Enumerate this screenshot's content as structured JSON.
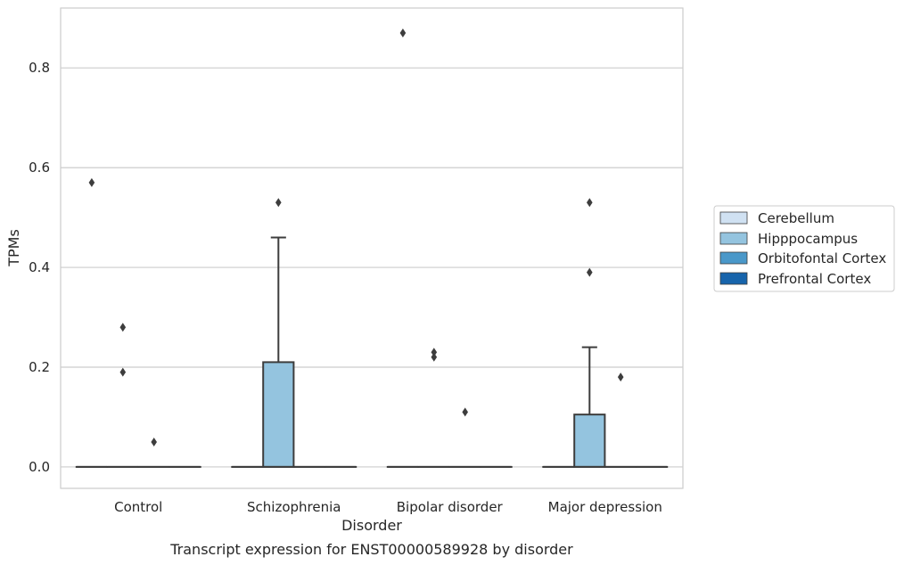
{
  "chart_data": {
    "type": "boxplot",
    "title": "Transcript expression for ENST00000589928 by disorder",
    "xlabel": "Disorder",
    "ylabel": "TPMs",
    "ylim": [
      -0.043,
      0.92
    ],
    "yticks": [
      0.0,
      0.2,
      0.4,
      0.6,
      0.8
    ],
    "ytick_labels": [
      "0.0",
      "0.2",
      "0.4",
      "0.6",
      "0.8"
    ],
    "grid": "horizontal",
    "legend_position": "right",
    "categories": [
      "Control",
      "Schizophrenia",
      "Bipolar disorder",
      "Major depression"
    ],
    "series": [
      {
        "name": "Cerebellum",
        "color": "#d0e1f2",
        "boxes": [
          {
            "q1": 0,
            "median": 0,
            "q3": 0,
            "whisker_low": 0,
            "whisker_high": 0,
            "outliers": [
              0.57
            ]
          },
          {
            "q1": 0,
            "median": 0,
            "q3": 0,
            "whisker_low": 0,
            "whisker_high": 0,
            "outliers": []
          },
          {
            "q1": 0,
            "median": 0,
            "q3": 0,
            "whisker_low": 0,
            "whisker_high": 0,
            "outliers": [
              0.87
            ]
          },
          {
            "q1": 0,
            "median": 0,
            "q3": 0,
            "whisker_low": 0,
            "whisker_high": 0,
            "outliers": []
          }
        ]
      },
      {
        "name": "Hipppocampus",
        "color": "#94c4df",
        "boxes": [
          {
            "q1": 0,
            "median": 0,
            "q3": 0,
            "whisker_low": 0,
            "whisker_high": 0,
            "outliers": [
              0.28,
              0.19
            ]
          },
          {
            "q1": 0,
            "median": 0,
            "q3": 0.21,
            "whisker_low": 0,
            "whisker_high": 0.46,
            "outliers": [
              0.53
            ]
          },
          {
            "q1": 0,
            "median": 0,
            "q3": 0,
            "whisker_low": 0,
            "whisker_high": 0,
            "outliers": [
              0.23,
              0.22
            ]
          },
          {
            "q1": 0,
            "median": 0,
            "q3": 0.105,
            "whisker_low": 0,
            "whisker_high": 0.24,
            "outliers": [
              0.53,
              0.39
            ]
          }
        ]
      },
      {
        "name": "Orbitofontal Cortex",
        "color": "#4a98c9",
        "boxes": [
          {
            "q1": 0,
            "median": 0,
            "q3": 0,
            "whisker_low": 0,
            "whisker_high": 0,
            "outliers": [
              0.05
            ]
          },
          {
            "q1": 0,
            "median": 0,
            "q3": 0,
            "whisker_low": 0,
            "whisker_high": 0,
            "outliers": []
          },
          {
            "q1": 0,
            "median": 0,
            "q3": 0,
            "whisker_low": 0,
            "whisker_high": 0,
            "outliers": [
              0.11
            ]
          },
          {
            "q1": 0,
            "median": 0,
            "q3": 0,
            "whisker_low": 0,
            "whisker_high": 0,
            "outliers": [
              0.18
            ]
          }
        ]
      },
      {
        "name": "Prefrontal Cortex",
        "color": "#1764ab",
        "boxes": [
          {
            "q1": 0,
            "median": 0,
            "q3": 0,
            "whisker_low": 0,
            "whisker_high": 0,
            "outliers": []
          },
          {
            "q1": 0,
            "median": 0,
            "q3": 0,
            "whisker_low": 0,
            "whisker_high": 0,
            "outliers": []
          },
          {
            "q1": 0,
            "median": 0,
            "q3": 0,
            "whisker_low": 0,
            "whisker_high": 0,
            "outliers": []
          },
          {
            "q1": 0,
            "median": 0,
            "q3": 0,
            "whisker_low": 0,
            "whisker_high": 0,
            "outliers": []
          }
        ]
      }
    ],
    "colors": {
      "grid": "#cccccc",
      "frame": "#cccccc",
      "box_edge": "#3d3d3d"
    }
  }
}
